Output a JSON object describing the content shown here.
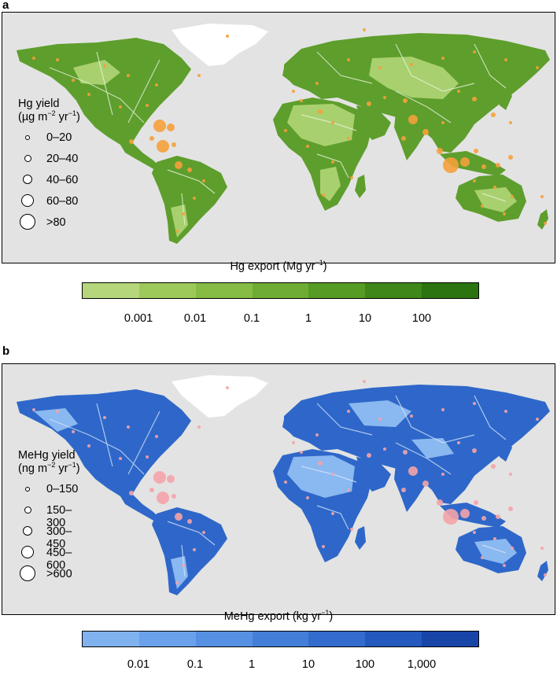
{
  "panel_a": {
    "letter": "a",
    "legend": {
      "title_line1": "Hg yield",
      "unit_prefix": "(µg m",
      "unit_sup1": "−2",
      "unit_mid": " yr",
      "unit_sup2": "−1",
      "unit_suffix": ")",
      "classes": [
        "0–20",
        "20–40",
        "40–60",
        "60–80",
        ">80"
      ]
    },
    "colorbar": {
      "title_prefix": "Hg export (Mg yr",
      "title_sup": "−1",
      "title_suffix": ")",
      "ticks": [
        "0.001",
        "0.01",
        "0.1",
        "1",
        "10",
        "100"
      ],
      "colors": [
        "#b5d67a",
        "#9dc95a",
        "#86bb44",
        "#6fac33",
        "#569b23",
        "#3f8718",
        "#2b7410"
      ]
    },
    "land_color": "#5e9e2c",
    "land_light": "#a9d06e",
    "circle_color": "#f5a03a"
  },
  "panel_b": {
    "letter": "b",
    "legend": {
      "title_line1": "MeHg yield",
      "unit_prefix": "(ng m",
      "unit_sup1": "−2",
      "unit_mid": " yr",
      "unit_sup2": "−1",
      "unit_suffix": ")",
      "classes": [
        "0–150",
        "150–300",
        "300–450",
        "450–600",
        ">600"
      ]
    },
    "colorbar": {
      "title": "MeHg export (kg yr",
      "title_sup": "−1",
      "title_suffix": ")",
      "ticks": [
        "0.01",
        "0.1",
        "1",
        "10",
        "100",
        "1,000"
      ],
      "colors": [
        "#7fb2ef",
        "#6aa1ea",
        "#5690e2",
        "#437fd8",
        "#336ccc",
        "#2459bd",
        "#1845a8"
      ]
    },
    "land_color": "#2e67c9",
    "land_light": "#8ab8f0",
    "circle_color": "#f4a3a8"
  }
}
